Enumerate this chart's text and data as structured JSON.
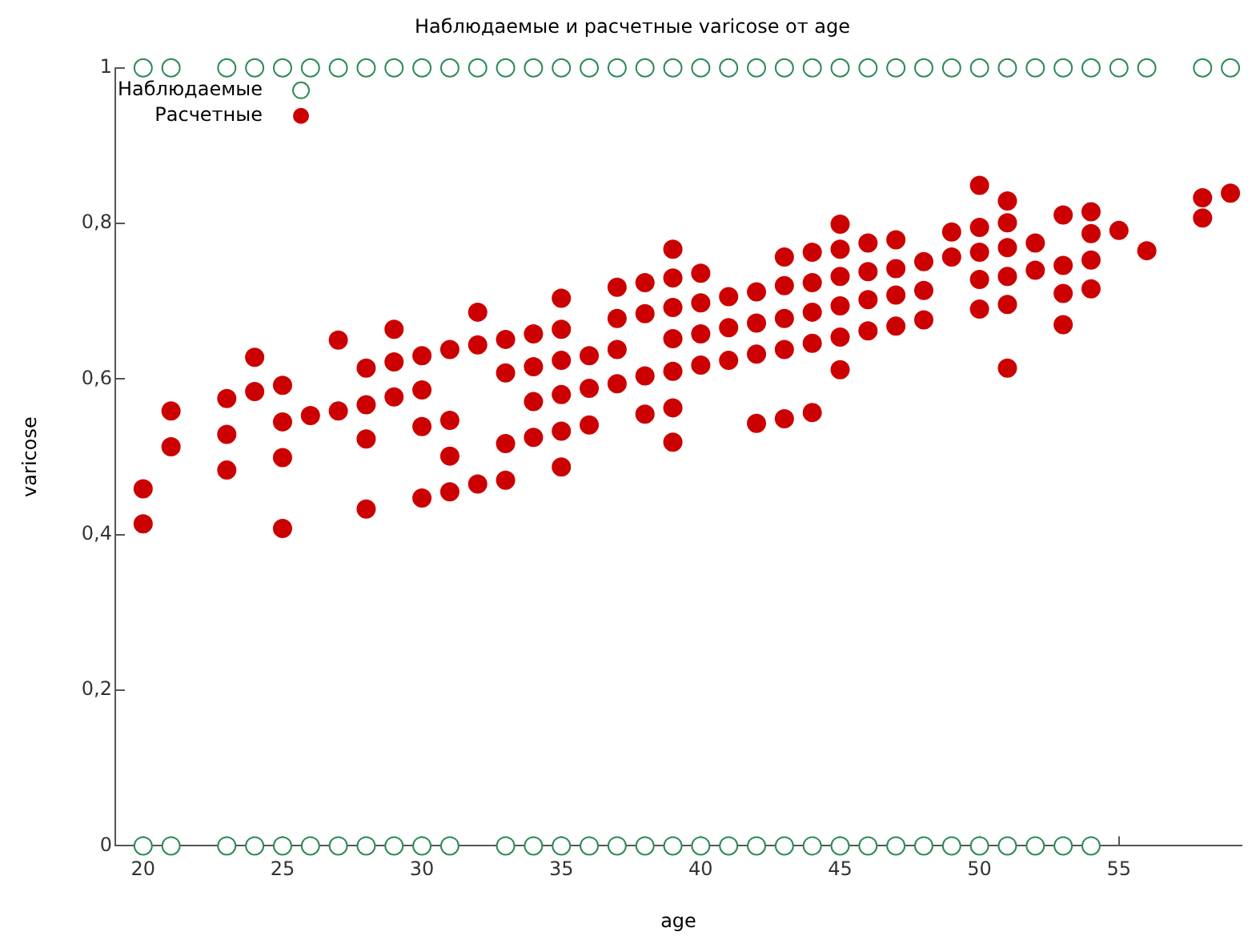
{
  "chart_data": {
    "type": "scatter",
    "title": "Наблюдаемые и расчетные varicose от age",
    "xlabel": "age",
    "ylabel": "varicose",
    "xlim": [
      19,
      59.4
    ],
    "ylim": [
      0,
      1
    ],
    "xticks": [
      20,
      25,
      30,
      35,
      40,
      45,
      50,
      55
    ],
    "yticks": [
      {
        "value": 0,
        "label": "0"
      },
      {
        "value": 0.2,
        "label": "0,2"
      },
      {
        "value": 0.4,
        "label": "0,4"
      },
      {
        "value": 0.6,
        "label": "0,6"
      },
      {
        "value": 0.8,
        "label": "0,8"
      },
      {
        "value": 1,
        "label": "1"
      }
    ],
    "grid": false,
    "legend": "top left",
    "marker": "circle",
    "series": [
      {
        "name": "Наблюдаемые",
        "color": "#2e8b57",
        "x": [
          20,
          21,
          23,
          24,
          25,
          26,
          27,
          28,
          29,
          30,
          31,
          32,
          33,
          34,
          35,
          36,
          37,
          38,
          39,
          40,
          41,
          42,
          43,
          44,
          45,
          46,
          47,
          48,
          49,
          50,
          51,
          52,
          53,
          54,
          55,
          56,
          58,
          59,
          20,
          21,
          23,
          24,
          25,
          26,
          27,
          28,
          29,
          30,
          31,
          33,
          34,
          35,
          36,
          37,
          38,
          39,
          40,
          41,
          42,
          43,
          44,
          45,
          46,
          47,
          48,
          49,
          50,
          51,
          52,
          53,
          54
        ],
        "values": [
          1,
          1,
          1,
          1,
          1,
          1,
          1,
          1,
          1,
          1,
          1,
          1,
          1,
          1,
          1,
          1,
          1,
          1,
          1,
          1,
          1,
          1,
          1,
          1,
          1,
          1,
          1,
          1,
          1,
          1,
          1,
          1,
          1,
          1,
          1,
          1,
          1,
          1,
          0,
          0,
          0,
          0,
          0,
          0,
          0,
          0,
          0,
          0,
          0,
          0,
          0,
          0,
          0,
          0,
          0,
          0,
          0,
          0,
          0,
          0,
          0,
          0,
          0,
          0,
          0,
          0,
          0,
          0,
          0,
          0,
          0
        ]
      },
      {
        "name": "Расчетные",
        "color": "#cc0000",
        "x": [
          20,
          20,
          21,
          21,
          23,
          23,
          23,
          24,
          24,
          25,
          25,
          25,
          25,
          26,
          27,
          27,
          28,
          28,
          28,
          28,
          29,
          29,
          29,
          30,
          30,
          30,
          30,
          31,
          31,
          31,
          31,
          32,
          32,
          32,
          33,
          33,
          33,
          33,
          34,
          34,
          34,
          34,
          35,
          35,
          35,
          35,
          35,
          35,
          36,
          36,
          36,
          37,
          37,
          37,
          37,
          38,
          38,
          38,
          38,
          39,
          39,
          39,
          39,
          39,
          39,
          39,
          40,
          40,
          40,
          40,
          41,
          41,
          41,
          42,
          42,
          42,
          42,
          43,
          43,
          43,
          43,
          43,
          44,
          44,
          44,
          44,
          44,
          45,
          45,
          45,
          45,
          45,
          45,
          46,
          46,
          46,
          46,
          47,
          47,
          47,
          47,
          48,
          48,
          48,
          49,
          49,
          50,
          50,
          50,
          50,
          50,
          51,
          51,
          51,
          51,
          51,
          51,
          52,
          52,
          53,
          53,
          53,
          53,
          54,
          54,
          54,
          54,
          55,
          56,
          58,
          58,
          59
        ],
        "values": [
          0.459,
          0.414,
          0.559,
          0.513,
          0.575,
          0.529,
          0.483,
          0.628,
          0.584,
          0.592,
          0.545,
          0.499,
          0.408,
          0.553,
          0.65,
          0.559,
          0.614,
          0.567,
          0.523,
          0.433,
          0.664,
          0.622,
          0.577,
          0.63,
          0.586,
          0.539,
          0.447,
          0.638,
          0.547,
          0.501,
          0.455,
          0.686,
          0.644,
          0.465,
          0.651,
          0.608,
          0.517,
          0.47,
          0.658,
          0.616,
          0.571,
          0.525,
          0.704,
          0.664,
          0.624,
          0.58,
          0.533,
          0.487,
          0.63,
          0.588,
          0.541,
          0.718,
          0.678,
          0.638,
          0.594,
          0.724,
          0.684,
          0.604,
          0.555,
          0.767,
          0.73,
          0.692,
          0.652,
          0.61,
          0.563,
          0.519,
          0.736,
          0.698,
          0.658,
          0.618,
          0.706,
          0.666,
          0.624,
          0.712,
          0.672,
          0.632,
          0.543,
          0.757,
          0.72,
          0.678,
          0.638,
          0.549,
          0.763,
          0.724,
          0.686,
          0.646,
          0.557,
          0.799,
          0.767,
          0.732,
          0.694,
          0.654,
          0.612,
          0.775,
          0.738,
          0.702,
          0.662,
          0.779,
          0.742,
          0.708,
          0.668,
          0.751,
          0.714,
          0.676,
          0.789,
          0.757,
          0.849,
          0.795,
          0.763,
          0.728,
          0.69,
          0.829,
          0.801,
          0.769,
          0.732,
          0.696,
          0.614,
          0.775,
          0.74,
          0.811,
          0.746,
          0.71,
          0.67,
          0.815,
          0.787,
          0.753,
          0.716,
          0.791,
          0.765,
          0.833,
          0.807,
          0.839
        ]
      }
    ]
  }
}
